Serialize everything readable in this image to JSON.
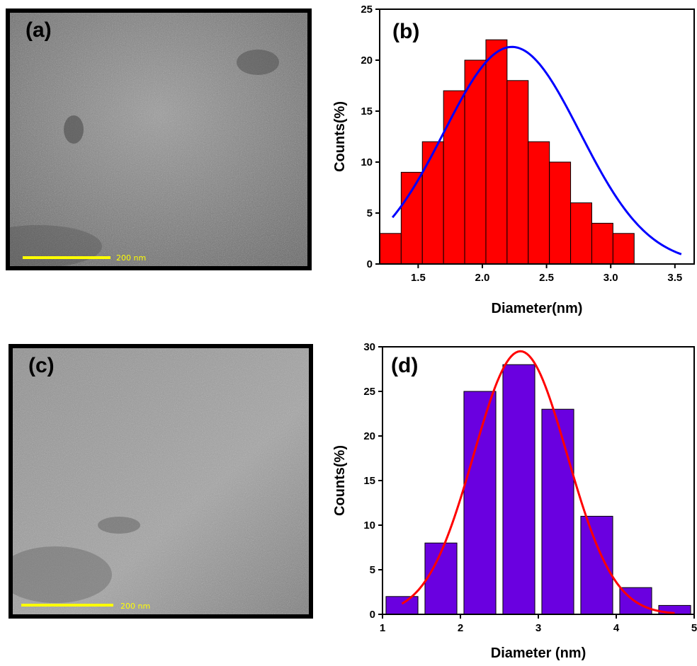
{
  "panels": {
    "a": {
      "letter": "(a)",
      "scale_label": "200 nm"
    },
    "b": {
      "letter": "(b)"
    },
    "c": {
      "letter": "(c)",
      "scale_label": "200 nm"
    },
    "d": {
      "letter": "(d)"
    }
  },
  "colors": {
    "bar_b": "#ff0000",
    "fit_b": "#0000ff",
    "bar_d": "#6a00e0",
    "fit_d": "#ff0000",
    "scale_bar": "#ffff00"
  },
  "chart_data": [
    {
      "id": "b",
      "type": "bar",
      "xlabel": "Diameter(nm)",
      "ylabel": "Counts(%)",
      "xlim": [
        1.2,
        3.65
      ],
      "ylim": [
        0,
        25
      ],
      "xticks": [
        "1.5",
        "2.0",
        "2.5",
        "3.0",
        "3.5"
      ],
      "yticks": [
        "0",
        "5",
        "10",
        "15",
        "20",
        "25"
      ],
      "bar_width": 0.165,
      "x": [
        1.3,
        1.5,
        1.633,
        1.833,
        2.0,
        2.167,
        2.333,
        2.5,
        2.667,
        2.833,
        3.0,
        3.167,
        3.333,
        3.5
      ],
      "x_note_hidden": true,
      "bins": [
        {
          "x": 1.285,
          "value": 3
        },
        {
          "x": 1.45,
          "value": 9
        },
        {
          "x": 1.615,
          "value": 12
        },
        {
          "x": 1.78,
          "value": 17
        },
        {
          "x": 1.945,
          "value": 20
        },
        {
          "x": 2.11,
          "value": 22
        },
        {
          "x": 2.275,
          "value": 18
        },
        {
          "x": 2.44,
          "value": 12
        },
        {
          "x": 2.605,
          "value": 10
        },
        {
          "x": 2.77,
          "value": 6
        },
        {
          "x": 2.935,
          "value": 4
        },
        {
          "x": 3.1,
          "value": 3
        }
      ],
      "fit": {
        "type": "gaussian",
        "center": 2.23,
        "sigma": 0.53,
        "amplitude": 21.3,
        "baseline": 0.0,
        "x_range": [
          1.3,
          3.55
        ]
      }
    },
    {
      "id": "d",
      "type": "bar",
      "xlabel": "Diameter (nm)",
      "ylabel": "Counts(%)",
      "xlim": [
        1,
        5
      ],
      "ylim": [
        0,
        30
      ],
      "xticks": [
        "1",
        "2",
        "3",
        "4",
        "5"
      ],
      "yticks": [
        "0",
        "5",
        "10",
        "15",
        "20",
        "25",
        "30"
      ],
      "bar_width": 0.41,
      "bins": [
        {
          "x": 1.25,
          "value": 2
        },
        {
          "x": 1.75,
          "value": 8
        },
        {
          "x": 2.25,
          "value": 25
        },
        {
          "x": 2.75,
          "value": 28
        },
        {
          "x": 3.25,
          "value": 23
        },
        {
          "x": 3.75,
          "value": 11
        },
        {
          "x": 4.25,
          "value": 3
        },
        {
          "x": 4.75,
          "value": 1
        }
      ],
      "fit": {
        "type": "gaussian",
        "center": 2.77,
        "sigma": 0.6,
        "amplitude": 29.5,
        "baseline": 0.0,
        "x_range": [
          1.25,
          4.75
        ]
      }
    }
  ]
}
